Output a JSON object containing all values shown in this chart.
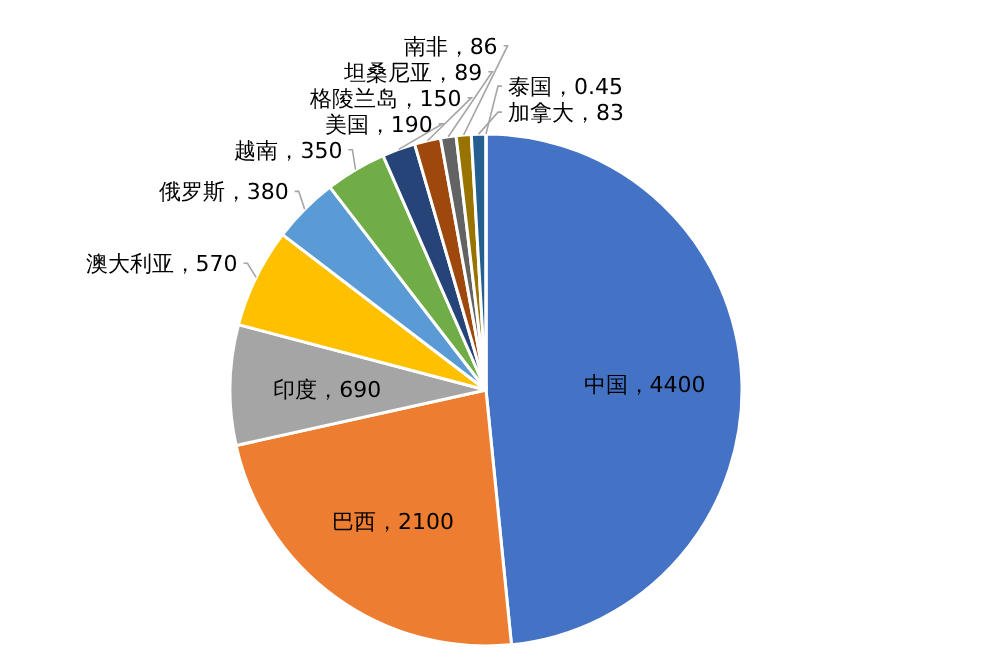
{
  "chart_data": {
    "type": "pie",
    "categories": [
      "中国",
      "巴西",
      "印度",
      "澳大利亚",
      "俄罗斯",
      "越南",
      "美国",
      "格陵兰岛",
      "坦桑尼亚",
      "南非",
      "加拿大",
      "泰国"
    ],
    "values": [
      4400,
      2100,
      690,
      570,
      380,
      350,
      190,
      150,
      89,
      86,
      83,
      0.45
    ],
    "colors": [
      "#4472c4",
      "#ed7d31",
      "#a5a5a5",
      "#ffc000",
      "#5b9bd5",
      "#70ad47",
      "#264478",
      "#9e480e",
      "#636363",
      "#997300",
      "#255e91",
      "#43682b"
    ],
    "value_labels": [
      "，4400",
      "，2100",
      "，690",
      "，570",
      "，380",
      "，350",
      "，190",
      "，150",
      "，89",
      "，86",
      "，83",
      "，0.45"
    ]
  }
}
